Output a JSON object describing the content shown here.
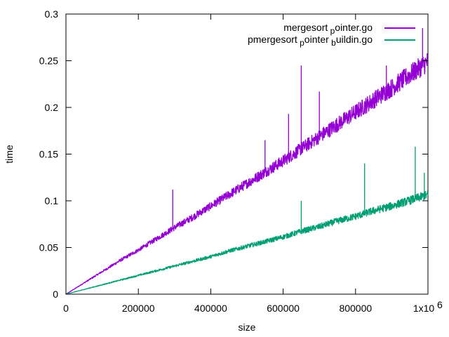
{
  "chart_data": {
    "type": "line",
    "title": "",
    "xlabel": "size",
    "ylabel": "time",
    "xlim": [
      0,
      1000000
    ],
    "ylim": [
      0,
      0.3
    ],
    "x_ticks": [
      0,
      200000,
      400000,
      600000,
      800000,
      1000000
    ],
    "x_tick_labels": [
      "0",
      "200000",
      "400000",
      "600000",
      "800000",
      "1x10"
    ],
    "x_tick_exponent": "6",
    "y_ticks": [
      0,
      0.05,
      0.1,
      0.15,
      0.2,
      0.25,
      0.3
    ],
    "y_tick_labels": [
      "0",
      "0.05",
      "0.1",
      "0.15",
      "0.2",
      "0.25",
      "0.3"
    ],
    "grid": false,
    "legend_position": "top-right",
    "series": [
      {
        "name": "mergesort",
        "name_subscript": "p",
        "name_rest": "ointer.go",
        "color": "#9400d3",
        "x": [
          0,
          50000,
          100000,
          150000,
          200000,
          250000,
          300000,
          350000,
          400000,
          450000,
          500000,
          550000,
          600000,
          650000,
          700000,
          750000,
          800000,
          850000,
          900000,
          950000,
          1000000
        ],
        "y": [
          0,
          0.012,
          0.024,
          0.036,
          0.047,
          0.059,
          0.071,
          0.082,
          0.094,
          0.106,
          0.118,
          0.13,
          0.142,
          0.155,
          0.168,
          0.181,
          0.194,
          0.207,
          0.22,
          0.234,
          0.248
        ],
        "spikes": [
          {
            "x": 650000,
            "y": 0.245
          },
          {
            "x": 700000,
            "y": 0.217
          },
          {
            "x": 615000,
            "y": 0.193
          },
          {
            "x": 885000,
            "y": 0.245
          },
          {
            "x": 985000,
            "y": 0.285
          },
          {
            "x": 550000,
            "y": 0.165
          },
          {
            "x": 295000,
            "y": 0.112
          }
        ]
      },
      {
        "name": "pmergesort",
        "name_subscript": "p",
        "name_rest": "ointer",
        "name_subscript2": "b",
        "name_rest2": "uildin.go",
        "color": "#009e73",
        "x": [
          0,
          50000,
          100000,
          150000,
          200000,
          250000,
          300000,
          350000,
          400000,
          450000,
          500000,
          550000,
          600000,
          650000,
          700000,
          750000,
          800000,
          850000,
          900000,
          950000,
          1000000
        ],
        "y": [
          0,
          0.005,
          0.01,
          0.015,
          0.02,
          0.025,
          0.03,
          0.035,
          0.04,
          0.046,
          0.051,
          0.056,
          0.061,
          0.067,
          0.072,
          0.078,
          0.083,
          0.089,
          0.094,
          0.1,
          0.106
        ],
        "spikes": [
          {
            "x": 825000,
            "y": 0.14
          },
          {
            "x": 965000,
            "y": 0.158
          },
          {
            "x": 650000,
            "y": 0.1
          },
          {
            "x": 990000,
            "y": 0.13
          }
        ]
      }
    ]
  }
}
